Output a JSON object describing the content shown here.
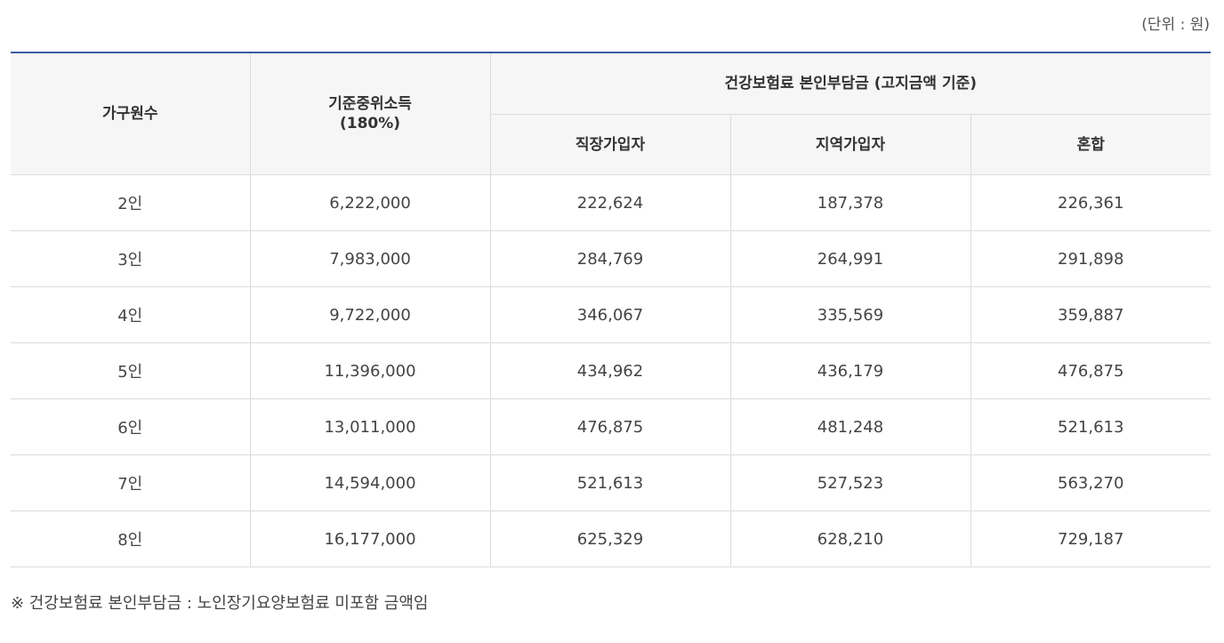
{
  "unit_label": "(단위 : 원)",
  "table": {
    "headers": {
      "household": "가구원수",
      "income": "기준중위소득\n(180%)",
      "premium_group": "건강보험료 본인부담금 (고지금액 기준)",
      "employee": "직장가입자",
      "regional": "지역가입자",
      "mixed": "혼합"
    },
    "rows": [
      [
        "2인",
        "6,222,000",
        "222,624",
        "187,378",
        "226,361"
      ],
      [
        "3인",
        "7,983,000",
        "284,769",
        "264,991",
        "291,898"
      ],
      [
        "4인",
        "9,722,000",
        "346,067",
        "335,569",
        "359,887"
      ],
      [
        "5인",
        "11,396,000",
        "434,962",
        "436,179",
        "476,875"
      ],
      [
        "6인",
        "13,011,000",
        "476,875",
        "481,248",
        "521,613"
      ],
      [
        "7인",
        "14,594,000",
        "521,613",
        "527,523",
        "563,270"
      ],
      [
        "8인",
        "16,177,000",
        "625,329",
        "628,210",
        "729,187"
      ]
    ]
  },
  "footnote": "※ 건강보험료 본인부담금 : 노인장기요양보험료 미포함 금액임",
  "colors": {
    "top_border": "#3b5aa5",
    "header_bg": "#f6f6f6",
    "grid_line": "#dcdcdc"
  }
}
